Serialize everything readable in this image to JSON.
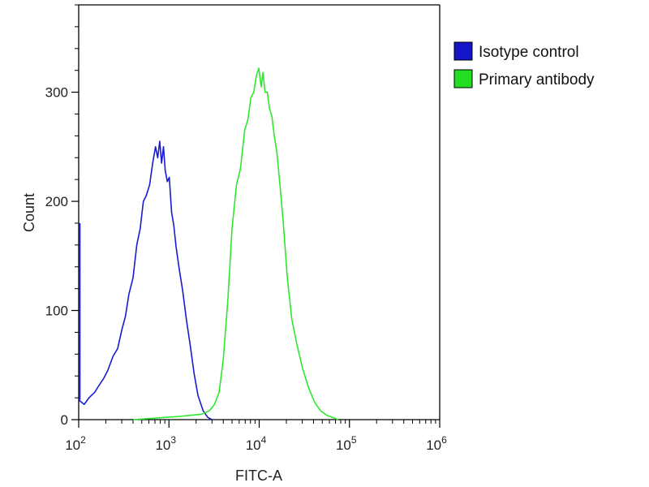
{
  "chart_data": {
    "type": "line",
    "title": "",
    "xlabel": "FITC-A",
    "ylabel": "Count",
    "x_scale": "log",
    "xlim": [
      100,
      1000000
    ],
    "ylim": [
      0,
      380
    ],
    "x_ticks": [
      {
        "value": 100,
        "base": "10",
        "exp": "2"
      },
      {
        "value": 1000,
        "base": "10",
        "exp": "3"
      },
      {
        "value": 10000,
        "base": "10",
        "exp": "4"
      },
      {
        "value": 100000,
        "base": "10",
        "exp": "5"
      },
      {
        "value": 1000000,
        "base": "10",
        "exp": "6"
      }
    ],
    "y_ticks": [
      0,
      100,
      200,
      300
    ],
    "grid": false,
    "legend": {
      "placement": "right",
      "entries": [
        {
          "label": "Isotype control",
          "color": "#1515c8"
        },
        {
          "label": "Primary antibody",
          "color": "#22dd22"
        }
      ]
    },
    "series": [
      {
        "name": "Isotype control",
        "color": "#1a1ad0",
        "x": [
          100,
          115,
          130,
          150,
          170,
          190,
          210,
          240,
          270,
          300,
          330,
          360,
          400,
          440,
          480,
          520,
          560,
          610,
          660,
          710,
          750,
          790,
          830,
          870,
          910,
          960,
          1010,
          1070,
          1130,
          1200,
          1300,
          1420,
          1560,
          1720,
          1900,
          2100,
          2400,
          2700,
          3000
        ],
        "y": [
          18,
          14,
          20,
          25,
          32,
          38,
          45,
          58,
          65,
          82,
          95,
          115,
          130,
          160,
          175,
          200,
          205,
          215,
          235,
          250,
          240,
          255,
          235,
          250,
          228,
          218,
          222,
          190,
          178,
          158,
          138,
          118,
          92,
          68,
          42,
          22,
          8,
          2,
          0
        ]
      },
      {
        "name": "Primary antibody",
        "color": "#2ee82e",
        "x": [
          400,
          600,
          900,
          1300,
          1800,
          2300,
          2800,
          3200,
          3600,
          4000,
          4500,
          5000,
          5600,
          6200,
          6900,
          7500,
          8100,
          8700,
          9300,
          9900,
          10500,
          11000,
          11600,
          12300,
          13000,
          13800,
          14700,
          15700,
          17000,
          18500,
          20500,
          23000,
          26000,
          30000,
          35000,
          41000,
          48000,
          56000,
          65000,
          75000
        ],
        "y": [
          0,
          1,
          2,
          3,
          4,
          5,
          8,
          14,
          25,
          55,
          110,
          175,
          215,
          230,
          265,
          275,
          295,
          300,
          315,
          322,
          305,
          318,
          300,
          300,
          285,
          278,
          260,
          245,
          215,
          180,
          130,
          92,
          70,
          48,
          30,
          16,
          8,
          4,
          2,
          0
        ]
      }
    ]
  }
}
